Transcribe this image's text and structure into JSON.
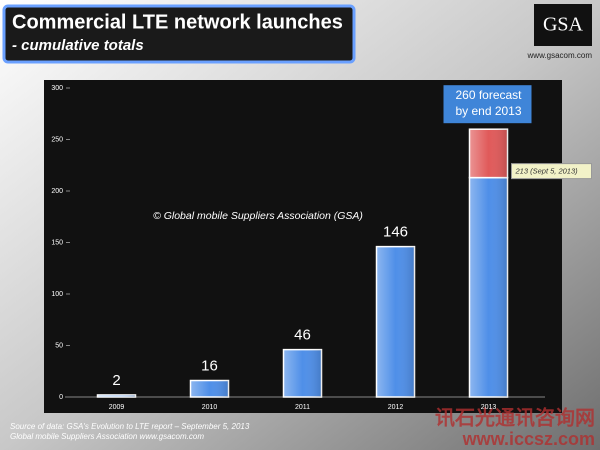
{
  "chart_data": {
    "type": "bar",
    "title": "Commercial LTE network launches",
    "subtitle": "- cumulative totals",
    "logo": "GSA",
    "website": "www.gsacom.com",
    "copyright": "© Global mobile Suppliers Association (GSA)",
    "source": [
      "Source of data: GSA's Evolution to LTE report – September 5, 2013",
      "Global mobile Suppliers Association www.gsacom.com"
    ],
    "watermark": [
      "讯石光通讯咨询网",
      "www.iccsz.com"
    ],
    "categories": [
      "2009",
      "2010",
      "2011",
      "2012",
      "2013"
    ],
    "series": [
      {
        "color": "#4f8fe8",
        "values": [
          2,
          16,
          46,
          146,
          213
        ],
        "value_labels": [
          "2",
          "16",
          "46",
          "146",
          "213 (Sept 5, 2013)"
        ]
      },
      {
        "color": "#e05a5a",
        "values": [
          null,
          null,
          null,
          null,
          47
        ]
      }
    ],
    "annotation": {
      "value": 260,
      "label": "260 forecast by end 2013"
    },
    "ylim": [
      0,
      300
    ],
    "yticks": [
      0,
      50,
      100,
      150,
      200,
      250,
      300
    ],
    "grid": false
  }
}
